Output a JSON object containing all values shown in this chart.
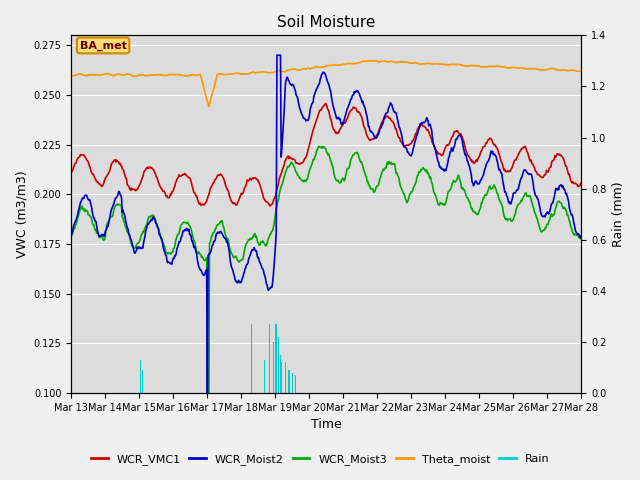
{
  "title": "Soil Moisture",
  "xlabel": "Time",
  "ylabel_left": "VWC (m3/m3)",
  "ylabel_right": "Rain (mm)",
  "ylim_left": [
    0.1,
    0.28
  ],
  "ylim_right": [
    0.0,
    1.4
  ],
  "station_label": "BA_met",
  "x_ticks": [
    "Mar 13",
    "Mar 14",
    "Mar 15",
    "Mar 16",
    "Mar 17",
    "Mar 18",
    "Mar 19",
    "Mar 20",
    "Mar 21",
    "Mar 22",
    "Mar 23",
    "Mar 24",
    "Mar 25",
    "Mar 26",
    "Mar 27",
    "Mar 28"
  ],
  "background_color": "#dcdcdc",
  "plot_bg_color": "#dcdcdc",
  "colors": {
    "WCR_VMC1": "#cc0000",
    "WCR_Moist2": "#0000cc",
    "WCR_Moist3": "#00aa00",
    "Theta_moist": "#ff9900",
    "Rain": "#00cccc"
  },
  "grid_color": "#ffffff",
  "title_fontsize": 11,
  "label_fontsize": 9,
  "tick_fontsize": 7,
  "legend_fontsize": 8
}
